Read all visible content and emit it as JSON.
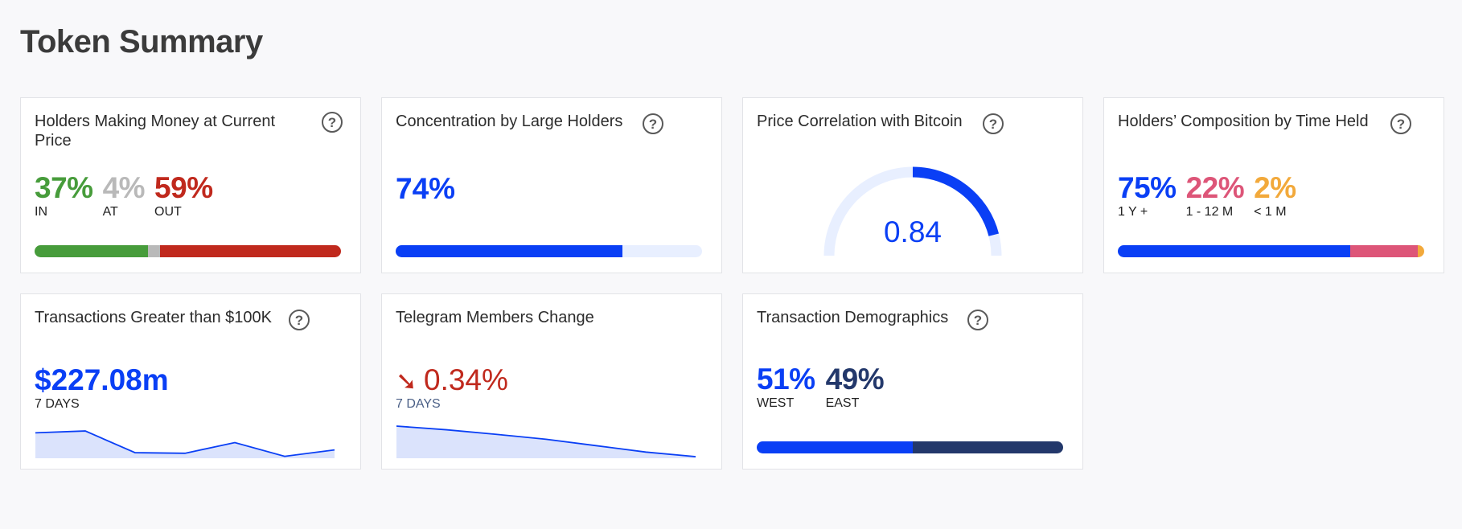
{
  "page": {
    "title": "Token Summary"
  },
  "cards": {
    "holders_money": {
      "title": "Holders Making Money at Current Price",
      "stats": [
        {
          "value": "37%",
          "label": "IN",
          "color": "#479c3b"
        },
        {
          "value": "4%",
          "label": "AT",
          "color": "#b9b9b9"
        },
        {
          "value": "59%",
          "label": "OUT",
          "color": "#c0291d"
        }
      ],
      "bar_fractions": [
        0.37,
        0.04,
        0.59
      ]
    },
    "concentration": {
      "title": "Concentration by Large Holders",
      "value": "74%",
      "fraction": 0.74,
      "color": "#0a3ff5"
    },
    "btc_correlation": {
      "title": "Price Correlation with Bitcoin",
      "value": "0.84",
      "fraction": 0.84,
      "color": "#0a3ff5",
      "track_color": "#e8efff"
    },
    "composition": {
      "title": "Holders’ Composition by Time Held",
      "stats": [
        {
          "value": "75%",
          "label": "1 Y +",
          "color": "#0a3ff5"
        },
        {
          "value": "22%",
          "label": "1 - 12 M",
          "color": "#dd5578"
        },
        {
          "value": "2%",
          "label": "< 1 M",
          "color": "#f2a93b"
        }
      ],
      "bar_fractions": [
        0.75,
        0.22,
        0.02
      ]
    },
    "large_tx": {
      "title": "Transactions Greater than $100K",
      "value": "$227.08m",
      "period": "7 DAYS",
      "spark": [
        0.78,
        0.84,
        0.13,
        0.11,
        0.46,
        0.01,
        0.22
      ]
    },
    "telegram": {
      "title": "Telegram Members Change",
      "arrow": "➘",
      "value": "0.34%",
      "period": "7 DAYS",
      "spark": [
        1.0,
        0.88,
        0.73,
        0.57,
        0.36,
        0.15,
        0.0
      ]
    },
    "demographics": {
      "title": "Transaction Demographics",
      "stats": [
        {
          "value": "51%",
          "label": "WEST",
          "color": "#0a3ff5"
        },
        {
          "value": "49%",
          "label": "EAST",
          "color": "#23386b"
        }
      ],
      "bar_fractions": [
        0.51,
        0.49
      ]
    }
  }
}
